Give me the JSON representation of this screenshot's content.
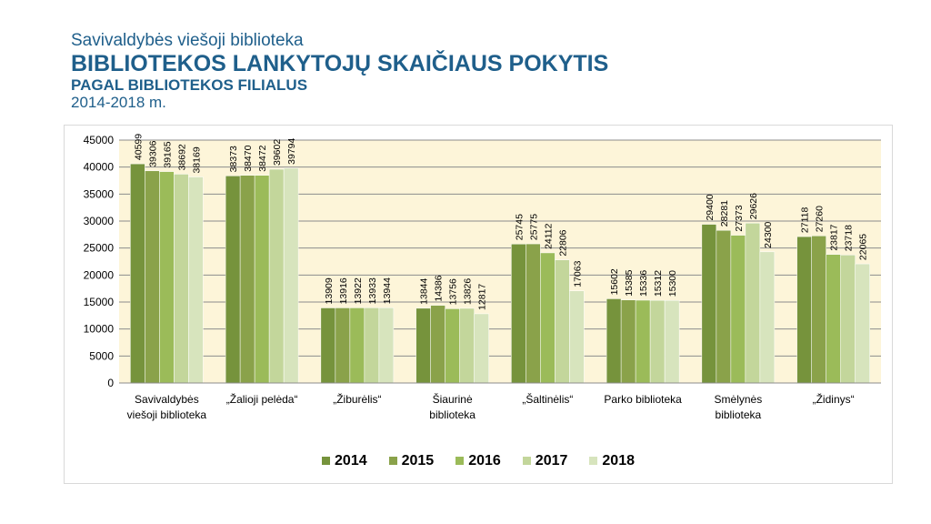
{
  "header": {
    "org": "Savivaldybės viešoji biblioteka",
    "title": "BIBLIOTEKOS LANKYTOJŲ SKAIČIAUS POKYTIS",
    "subtitle": "PAGAL BIBLIOTEKOS FILIALUS",
    "years": "2014-2018 m."
  },
  "colors": [
    "#76933c",
    "#8aa24a",
    "#9bbb59",
    "#c3d69b",
    "#d7e4bd"
  ],
  "chart_data": {
    "type": "bar",
    "categories": [
      [
        "Savivaldybės",
        "viešoji biblioteka"
      ],
      [
        "„Žalioji pelėda“"
      ],
      [
        "„Žiburėlis“"
      ],
      [
        "Šiaurinė",
        "biblioteka"
      ],
      [
        "„Šaltinėlis“"
      ],
      [
        "Parko biblioteka"
      ],
      [
        "Smėlynės",
        "biblioteka"
      ],
      [
        "„Židinys“"
      ]
    ],
    "series": [
      {
        "name": "2014",
        "values": [
          40599,
          38373,
          13909,
          13844,
          25745,
          15602,
          29400,
          27118
        ]
      },
      {
        "name": "2015",
        "values": [
          39306,
          38470,
          13916,
          14386,
          25775,
          15385,
          28281,
          27260
        ]
      },
      {
        "name": "2016",
        "values": [
          39165,
          38472,
          13922,
          13756,
          24112,
          15336,
          27373,
          23817
        ]
      },
      {
        "name": "2017",
        "values": [
          38692,
          39602,
          13933,
          13826,
          22806,
          15312,
          29626,
          23718
        ]
      },
      {
        "name": "2018",
        "values": [
          38169,
          39794,
          13944,
          12817,
          17063,
          15300,
          24300,
          22065
        ]
      }
    ],
    "ylim": [
      0,
      45000
    ],
    "yticks": [
      0,
      5000,
      10000,
      15000,
      20000,
      25000,
      30000,
      35000,
      40000,
      45000
    ],
    "grid": true,
    "legend_position": "bottom"
  }
}
